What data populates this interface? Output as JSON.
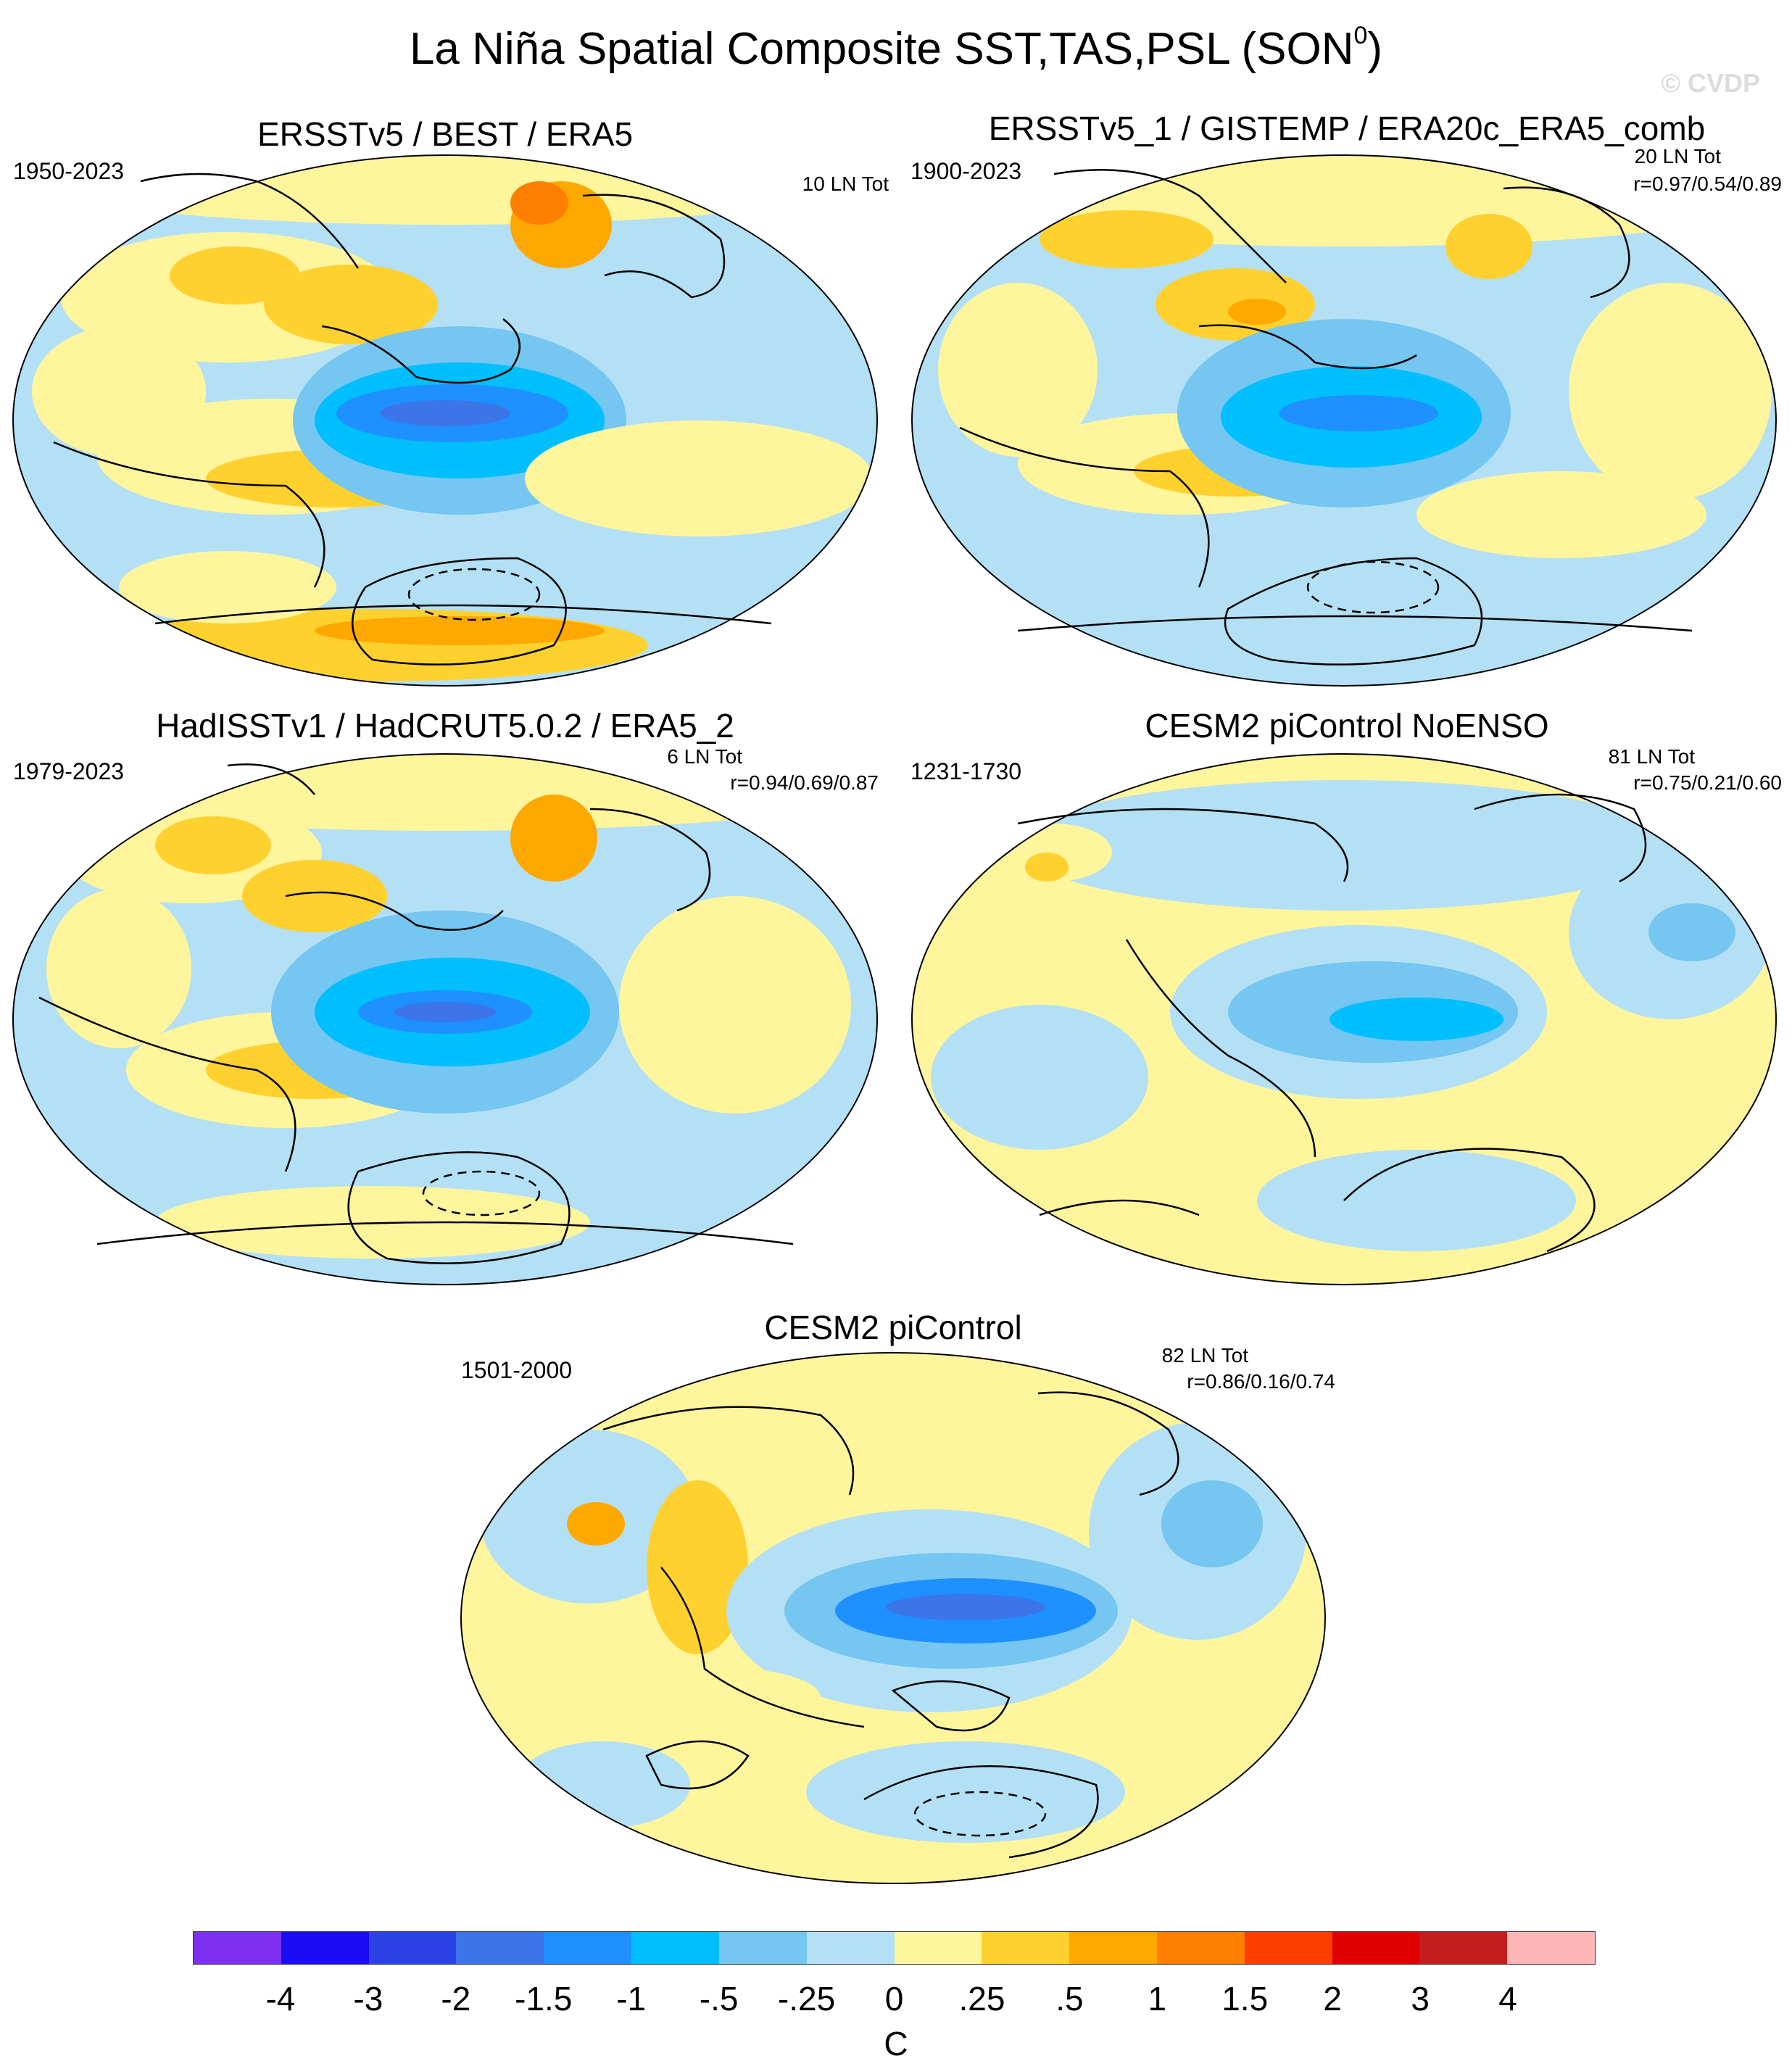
{
  "title": "La Niña Spatial Composite SST,TAS,PSL (SON",
  "title_sup": "0",
  "title_close": ")",
  "watermark": "© CVDP",
  "panels": [
    {
      "title": "ERSSTv5 / BEST / ERA5",
      "years": "1950-2023",
      "count": "10 LN Tot",
      "stats": ""
    },
    {
      "title": "ERSSTv5_1 / GISTEMP / ERA20c_ERA5_comb",
      "years": "1900-2023",
      "count": "20 LN Tot",
      "stats": "r=0.97/0.54/0.89"
    },
    {
      "title": "HadISSTv1 / HadCRUT5.0.2 / ERA5_2",
      "years": "1979-2023",
      "count": "6 LN Tot",
      "stats": "r=0.94/0.69/0.87"
    },
    {
      "title": "CESM2 piControl NoENSO",
      "years": "1231-1730",
      "count": "81 LN Tot",
      "stats": "r=0.75/0.21/0.60"
    },
    {
      "title": "CESM2 piControl",
      "years": "1501-2000",
      "count": "82 LN Tot",
      "stats": "r=0.86/0.16/0.74"
    }
  ],
  "colorbar": {
    "unit": "C",
    "labels": [
      "-4",
      "-3",
      "-2",
      "-1.5",
      "-1",
      "-.5",
      "-.25",
      "0",
      ".25",
      ".5",
      "1",
      "1.5",
      "2",
      "3",
      "4"
    ],
    "colors": [
      "#7f2ff0",
      "#1a0df5",
      "#2b43e6",
      "#3b75e8",
      "#1e90ff",
      "#00bfff",
      "#75c6f0",
      "#b4e0f5",
      "#fff59d",
      "#ffd12e",
      "#ffa800",
      "#ff7f00",
      "#ff3d00",
      "#e00000",
      "#c41d1d",
      "#ffb6b6"
    ]
  },
  "palette": {
    "ocean_neutral": "#b4e0f5",
    "warm": "#fff59d",
    "warm2": "#ffd12e",
    "cool": "#75c6f0",
    "cool2": "#00bfff",
    "cool3": "#1e90ff"
  }
}
